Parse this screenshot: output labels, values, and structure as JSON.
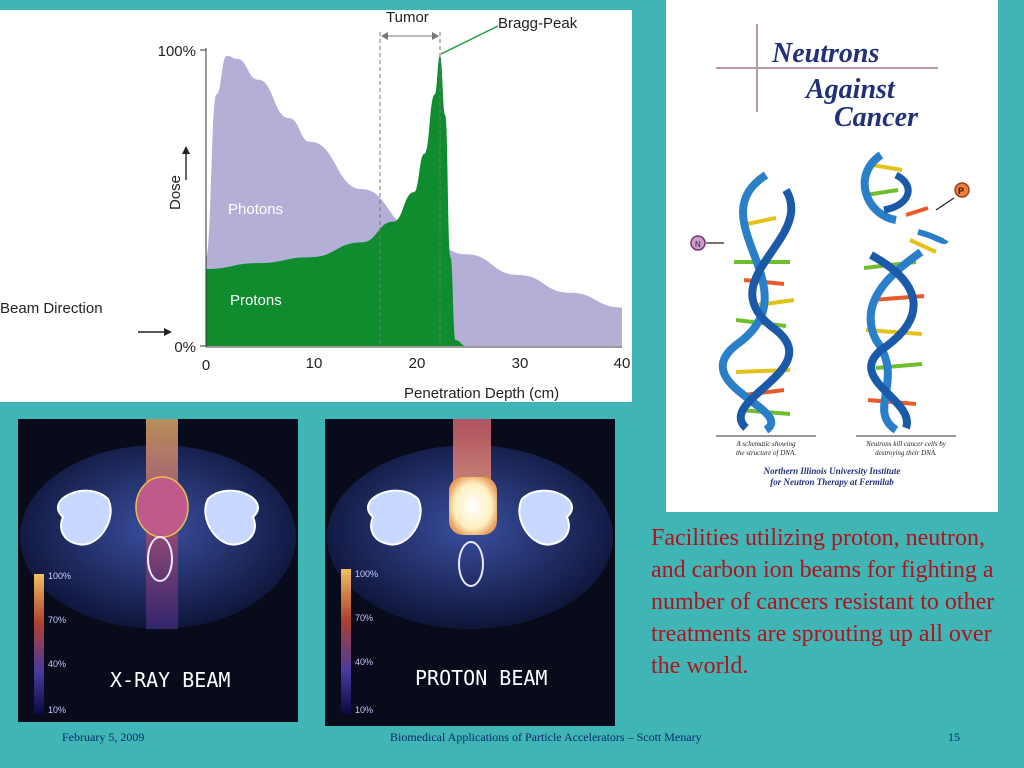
{
  "chart_data": {
    "type": "area",
    "xlabel": "Penetration Depth (cm)",
    "ylabel": "Dose",
    "xlim": [
      0,
      40
    ],
    "ylim": [
      0,
      100
    ],
    "x_ticks": [
      "0",
      "10",
      "20",
      "30",
      "40"
    ],
    "y_ticks": [
      "0%",
      "100%"
    ],
    "series": [
      {
        "name": "Photons",
        "color": "#b4afd6",
        "x": [
          0,
          1,
          2,
          3,
          5,
          8,
          10,
          15,
          20,
          25,
          30,
          35,
          40
        ],
        "y": [
          30,
          85,
          98,
          97,
          90,
          77,
          69,
          53,
          40,
          31,
          24,
          18,
          13
        ]
      },
      {
        "name": "Protons",
        "color": "#0e8c2e",
        "x": [
          0,
          5,
          10,
          15,
          18,
          20,
          21,
          22,
          22.5,
          23,
          23.5,
          24,
          25
        ],
        "y": [
          26,
          28,
          30,
          35,
          42,
          52,
          65,
          85,
          98,
          78,
          30,
          2,
          0
        ]
      }
    ],
    "annotations": {
      "tumor": "Tumor",
      "bragg_peak": "Bragg-Peak",
      "beam_direction": "Beam Direction"
    }
  },
  "poster": {
    "title_line1": "Neutrons",
    "title_line2": "Against",
    "title_line3": "Cancer",
    "caption_left_1": "A schematic showing",
    "caption_left_2": "the structure of DNA.",
    "caption_right_1": "Neutrons kill cancer cells by",
    "caption_right_2": "destroying their DNA.",
    "institute_1": "Northern Illinois University Institute",
    "institute_2": "for Neutron Therapy at Fermilab",
    "neutron_symbol": "N",
    "proton_symbol": "P"
  },
  "scans": {
    "xray": {
      "label": "X-RAY BEAM",
      "scale": [
        "100%",
        "70%",
        "40%",
        "10%"
      ]
    },
    "proton": {
      "label": "PROTON BEAM",
      "scale": [
        "100%",
        "70%",
        "40%",
        "10%"
      ]
    }
  },
  "caption": "Facilities utilizing proton, neutron, and carbon ion beams for fighting a number of cancers resistant to other treatments are sprouting up all over the world.",
  "footer": {
    "date": "February 5, 2009",
    "title": "Biomedical Applications of Particle Accelerators – Scott Menary",
    "page": "15"
  }
}
